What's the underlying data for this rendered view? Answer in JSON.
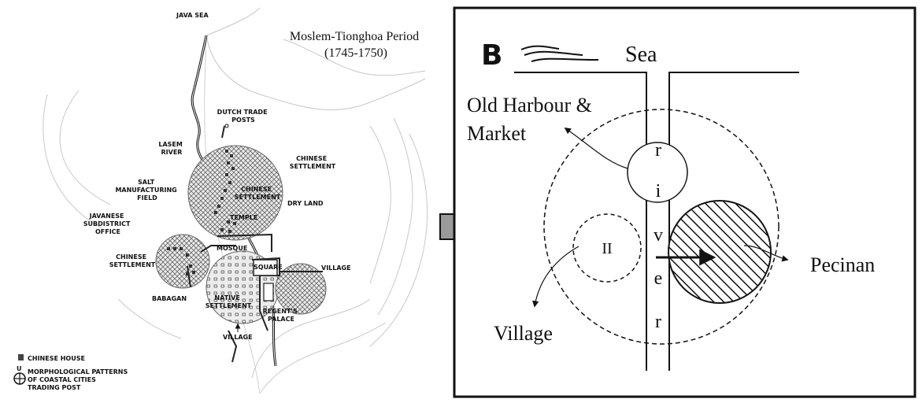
{
  "left_map": {
    "labels": {
      "java_sea": "JAVA SEA",
      "dutch_trade_posts": [
        "DUTCH TRADE",
        "POSTS"
      ],
      "lasem_river": [
        "LASEM",
        "RIVER"
      ],
      "chinese_settlement_ne": [
        "CHINESE",
        "SETTLEMENT"
      ],
      "salt_field": [
        "SALT",
        "MANUFACTURING",
        "FIELD"
      ],
      "chinese_settlement_inner": [
        "CHINESE",
        "SETTLEMENT"
      ],
      "dry_land": "DRY LAND",
      "temple": "TEMPLE",
      "javanese_office": [
        "JAVANESE",
        "SUBDISTRICT",
        "OFFICE"
      ],
      "mosque": "MOSQUE",
      "chinese_settlement_w": [
        "CHINESE",
        "SETTLEMENT"
      ],
      "square": "SQUARE",
      "village_e": "VILLAGE",
      "babagan": "BABAGAN",
      "native_settlement": [
        "NATIVE",
        "SETTLEMENT"
      ],
      "regents_palace": [
        "REGENT'S",
        "PALACE"
      ],
      "village_s": "VILLAGE"
    },
    "legend": {
      "chinese_house": "CHINESE HOUSE",
      "north_letter": "U",
      "morph_lines": [
        "MORPHOLOGICAL PATTERNS",
        "OF COASTAL CITIES",
        "TRADING POST"
      ]
    }
  },
  "period": {
    "title": "Moslem-Tionghoa Period",
    "years": "(1745-1750)"
  },
  "diagram_b": {
    "panel_letter": "B",
    "sea": "Sea",
    "harbour": [
      "Old Harbour &",
      "Market"
    ],
    "river_letters": [
      "r",
      "i",
      "v",
      "e",
      "r"
    ],
    "roman_numeral": "II",
    "pecinan": "Pecinan",
    "village": "Village"
  },
  "colors": {
    "ink": "#111111",
    "terrain": "#c8c8c8",
    "arrow_fill": "#9a9a9a",
    "circle_fill": "#e6e6e6"
  }
}
